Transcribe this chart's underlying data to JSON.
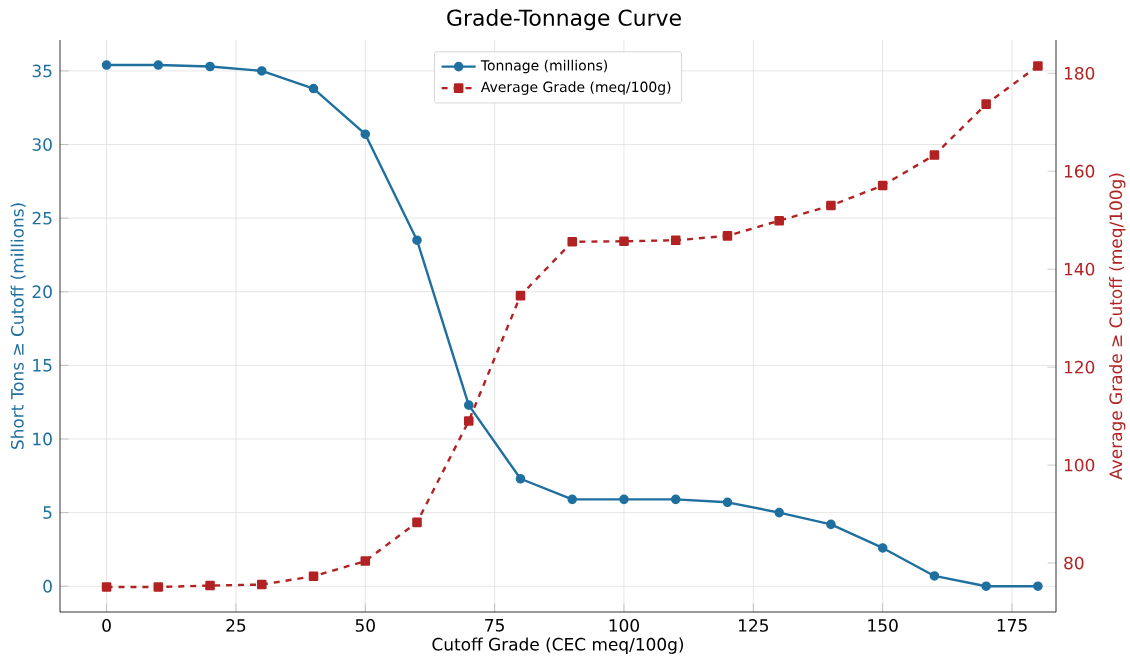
{
  "chart_data": {
    "type": "line",
    "title": "Grade-Tonnage Curve",
    "xlabel": "Cutoff Grade (CEC meq/100g)",
    "ylabel": "Short Tons ≥ Cutoff (millions)",
    "y2label": "Average Grade ≥ Cutoff (meq/100g)",
    "x": [
      0,
      10,
      20,
      30,
      40,
      50,
      60,
      70,
      80,
      90,
      100,
      110,
      120,
      130,
      140,
      150,
      160,
      170,
      180
    ],
    "series": [
      {
        "name": "Tonnage (millions)",
        "color": "#1f6f9f",
        "marker": "circle",
        "line_style": "solid",
        "values": [
          35.4,
          35.4,
          35.3,
          35.0,
          33.8,
          30.7,
          23.5,
          12.3,
          7.3,
          5.9,
          5.9,
          5.9,
          5.7,
          5.0,
          4.2,
          2.6,
          0.7,
          0,
          0
        ]
      },
      {
        "name": "Average Grade (meq/100g)",
        "color": "#b22222",
        "marker": "square",
        "line_style": "dashed",
        "axis": "y2",
        "values": [
          75.1,
          75.1,
          75.4,
          75.6,
          77.3,
          80.4,
          88.3,
          109,
          134.6,
          145.6,
          145.7,
          145.9,
          146.8,
          149.9,
          153,
          157.1,
          163.3,
          173.7,
          181.5
        ]
      }
    ],
    "xlim": [
      -9,
      183.5
    ],
    "xticks": [
      0,
      25,
      50,
      75,
      100,
      125,
      150,
      175
    ],
    "ylim": [
      -1.75,
      37.1
    ],
    "yticks": [
      0,
      5,
      10,
      15,
      20,
      25,
      30,
      35
    ],
    "y2lim": [
      70,
      186.8
    ],
    "y2ticks": [
      80,
      100,
      120,
      140,
      160,
      180
    ],
    "grid": true,
    "legend": "top"
  }
}
